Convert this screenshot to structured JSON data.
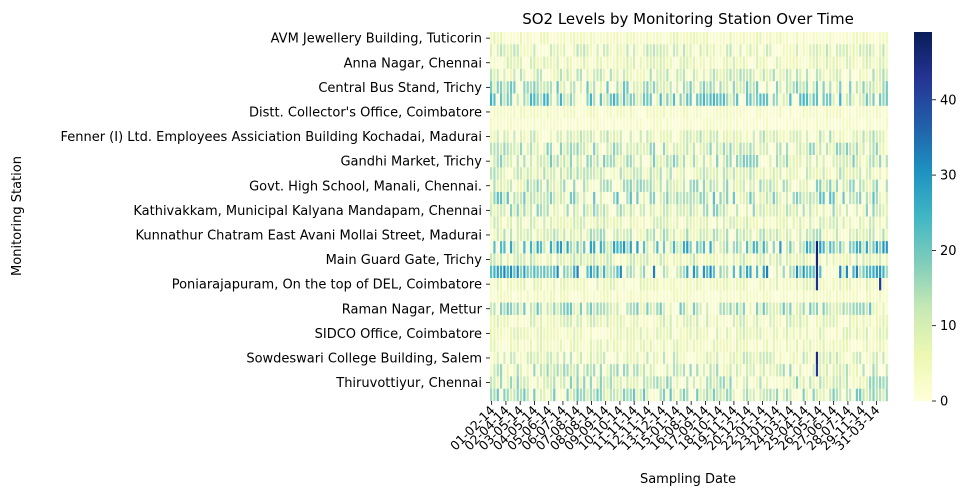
{
  "chart_data": {
    "type": "heatmap",
    "title": "SO2 Levels by Monitoring Station Over Time",
    "xlabel": "Sampling Date",
    "ylabel": "Monitoring Station",
    "y_tick_labels": [
      "AVM Jewellery Building, Tuticorin",
      "Anna Nagar, Chennai",
      "Central Bus Stand, Trichy",
      "Distt. Collector's Office, Coimbatore",
      "Fenner (I) Ltd. Employees Assiciation Building Kochadai, Madurai",
      "Gandhi Market, Trichy",
      "Govt. High School, Manali, Chennai.",
      "Kathivakkam, Municipal Kalyana Mandapam, Chennai",
      "Kunnathur Chatram East Avani Mollai Street, Madurai",
      "Main Guard Gate, Trichy",
      "Poniarajapuram, On the top of DEL, Coimbatore",
      "Raman Nagar, Mettur",
      "SIDCO Office, Coimbatore",
      "Sowdeswari College Building, Salem",
      "Thiruvottiyur,  Chennai"
    ],
    "x_tick_labels": [
      "01-02-14",
      "02-04-14",
      "03-05-14",
      "04-05-14",
      "05-06-14",
      "06-07-14",
      "07-08-14",
      "08-08-14",
      "09-09-14",
      "10-10-14",
      "11-11-14",
      "12-11-14",
      "13-12-14",
      "15-01-14",
      "16-08-14",
      "17-09-14",
      "18-10-14",
      "19-11-14",
      "20-12-14",
      "22-01-14",
      "23-01-14",
      "24-03-14",
      "25-04-14",
      "26-05-14",
      "27-06-14",
      "28-07-14",
      "29-11-14",
      "31-03-14"
    ],
    "num_rows": 30,
    "num_cols": 120,
    "colorbar": {
      "min": 0,
      "max": 49,
      "ticks": [
        0,
        10,
        20,
        30,
        40
      ]
    },
    "colormap": "YlGnBu",
    "row_typical_level": [
      5,
      9,
      7,
      10,
      14,
      17,
      4,
      3,
      10,
      12,
      13,
      10,
      12,
      15,
      12,
      8,
      11,
      20,
      9,
      22,
      6,
      4,
      14,
      8,
      7,
      6,
      9,
      11,
      12,
      14
    ],
    "peaks": [
      {
        "row": 17,
        "col": 98,
        "value": 47
      },
      {
        "row": 18,
        "col": 98,
        "value": 46
      },
      {
        "row": 19,
        "col": 98,
        "value": 45
      },
      {
        "row": 20,
        "col": 98,
        "value": 44
      },
      {
        "row": 20,
        "col": 117,
        "value": 42
      },
      {
        "row": 26,
        "col": 98,
        "value": 45
      },
      {
        "row": 27,
        "col": 98,
        "value": 43
      }
    ]
  }
}
